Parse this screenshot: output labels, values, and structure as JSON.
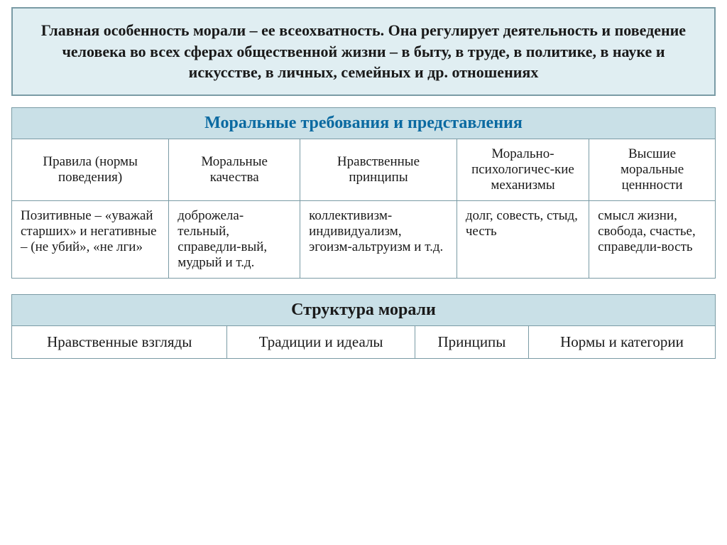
{
  "intro": "Главная особенность морали – ее всеохватность. Она регулирует деятельность и поведение человека во всех сферах общественной жизни – в быту, в труде, в политике, в науке и искусстве, в личных, семейных и др. отношениях",
  "table1": {
    "title": "Моральные требования и представления",
    "headers": [
      "Правила (нормы поведения)",
      "Моральные качества",
      "Нравственные принципы",
      "Морально-психологичес-кие механизмы",
      "Высшие моральные ценнности"
    ],
    "cells": [
      "Позитивные – «уважай старших» и негативные – (не убий», «не лги»",
      "доброжела-тельный, справедли-вый, мудрый и т.д.",
      "коллективизм-индивидуализм, эгоизм-альтруизм и т.д.",
      "долг, совесть, стыд, честь",
      "смысл жизни, свобода, счастье, справедли-вость"
    ]
  },
  "table2": {
    "title": "Структура морали",
    "cells": [
      "Нравственные взгляды",
      "Традиции и идеалы",
      "Принципы",
      "Нормы и категории"
    ]
  },
  "colors": {
    "header_bg": "#c9e0e7",
    "intro_bg": "#e0eef2",
    "border": "#7a9ba5",
    "title_blue": "#0b6aa1",
    "text": "#1a1a1a"
  }
}
